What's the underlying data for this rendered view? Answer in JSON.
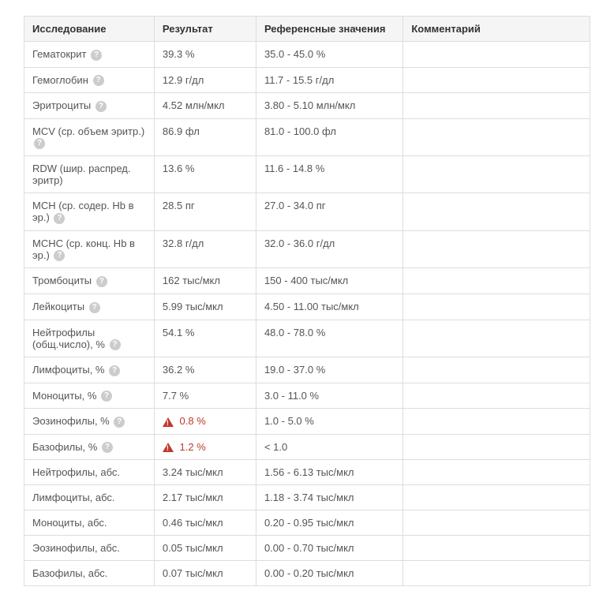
{
  "table": {
    "columns": [
      "Исследование",
      "Результат",
      "Референсные значения",
      "Комментарий"
    ],
    "rows": [
      {
        "test": "Гематокрит",
        "help": true,
        "result": "39.3 %",
        "alert": false,
        "ref": "35.0 - 45.0 %",
        "comment": ""
      },
      {
        "test": "Гемоглобин",
        "help": true,
        "result": "12.9 г/дл",
        "alert": false,
        "ref": "11.7 - 15.5 г/дл",
        "comment": ""
      },
      {
        "test": "Эритроциты",
        "help": true,
        "result": "4.52 млн/мкл",
        "alert": false,
        "ref": "3.80 - 5.10 млн/мкл",
        "comment": ""
      },
      {
        "test": "MCV (ср. объем эритр.)",
        "help": true,
        "result": "86.9 фл",
        "alert": false,
        "ref": "81.0 - 100.0 фл",
        "comment": ""
      },
      {
        "test": "RDW (шир. распред. эритр)",
        "help": false,
        "result": "13.6 %",
        "alert": false,
        "ref": "11.6 - 14.8 %",
        "comment": ""
      },
      {
        "test": "MCH (ср. содер. Hb в эр.)",
        "help": true,
        "result": "28.5 пг",
        "alert": false,
        "ref": "27.0 - 34.0 пг",
        "comment": ""
      },
      {
        "test": "MCHC (ср. конц. Hb в эр.)",
        "help": true,
        "result": "32.8 г/дл",
        "alert": false,
        "ref": "32.0 - 36.0 г/дл",
        "comment": ""
      },
      {
        "test": "Тромбоциты",
        "help": true,
        "result": "162 тыс/мкл",
        "alert": false,
        "ref": "150 - 400 тыс/мкл",
        "comment": ""
      },
      {
        "test": "Лейкоциты",
        "help": true,
        "result": "5.99 тыс/мкл",
        "alert": false,
        "ref": "4.50 - 11.00 тыс/мкл",
        "comment": ""
      },
      {
        "test": "Нейтрофилы (общ.число), %",
        "help": true,
        "result": "54.1 %",
        "alert": false,
        "ref": "48.0 - 78.0 %",
        "comment": ""
      },
      {
        "test": "Лимфоциты, %",
        "help": true,
        "result": "36.2 %",
        "alert": false,
        "ref": "19.0 - 37.0 %",
        "comment": ""
      },
      {
        "test": "Моноциты, %",
        "help": true,
        "result": "7.7 %",
        "alert": false,
        "ref": "3.0 - 11.0 %",
        "comment": ""
      },
      {
        "test": "Эозинофилы, %",
        "help": true,
        "result": "0.8 %",
        "alert": true,
        "ref": "1.0 - 5.0 %",
        "comment": ""
      },
      {
        "test": "Базофилы, %",
        "help": true,
        "result": "1.2 %",
        "alert": true,
        "ref": "< 1.0",
        "comment": ""
      },
      {
        "test": "Нейтрофилы, абс.",
        "help": false,
        "result": "3.24 тыс/мкл",
        "alert": false,
        "ref": "1.56 - 6.13 тыс/мкл",
        "comment": ""
      },
      {
        "test": "Лимфоциты, абс.",
        "help": false,
        "result": "2.17 тыс/мкл",
        "alert": false,
        "ref": "1.18 - 3.74 тыс/мкл",
        "comment": ""
      },
      {
        "test": "Моноциты, абс.",
        "help": false,
        "result": "0.46 тыс/мкл",
        "alert": false,
        "ref": "0.20 - 0.95 тыс/мкл",
        "comment": ""
      },
      {
        "test": "Эозинофилы, абс.",
        "help": false,
        "result": "0.05 тыс/мкл",
        "alert": false,
        "ref": "0.00 - 0.70 тыс/мкл",
        "comment": ""
      },
      {
        "test": "Базофилы, абс.",
        "help": false,
        "result": "0.07 тыс/мкл",
        "alert": false,
        "ref": "0.00 - 0.20 тыс/мкл",
        "comment": ""
      }
    ]
  },
  "colors": {
    "border": "#dddddd",
    "header_bg": "#f5f5f5",
    "text": "#555555",
    "header_text": "#333333",
    "help_bg": "#cccccc",
    "alert": "#c0392b",
    "background": "#ffffff"
  },
  "font": {
    "family": "Arial",
    "size_pt": 10
  }
}
